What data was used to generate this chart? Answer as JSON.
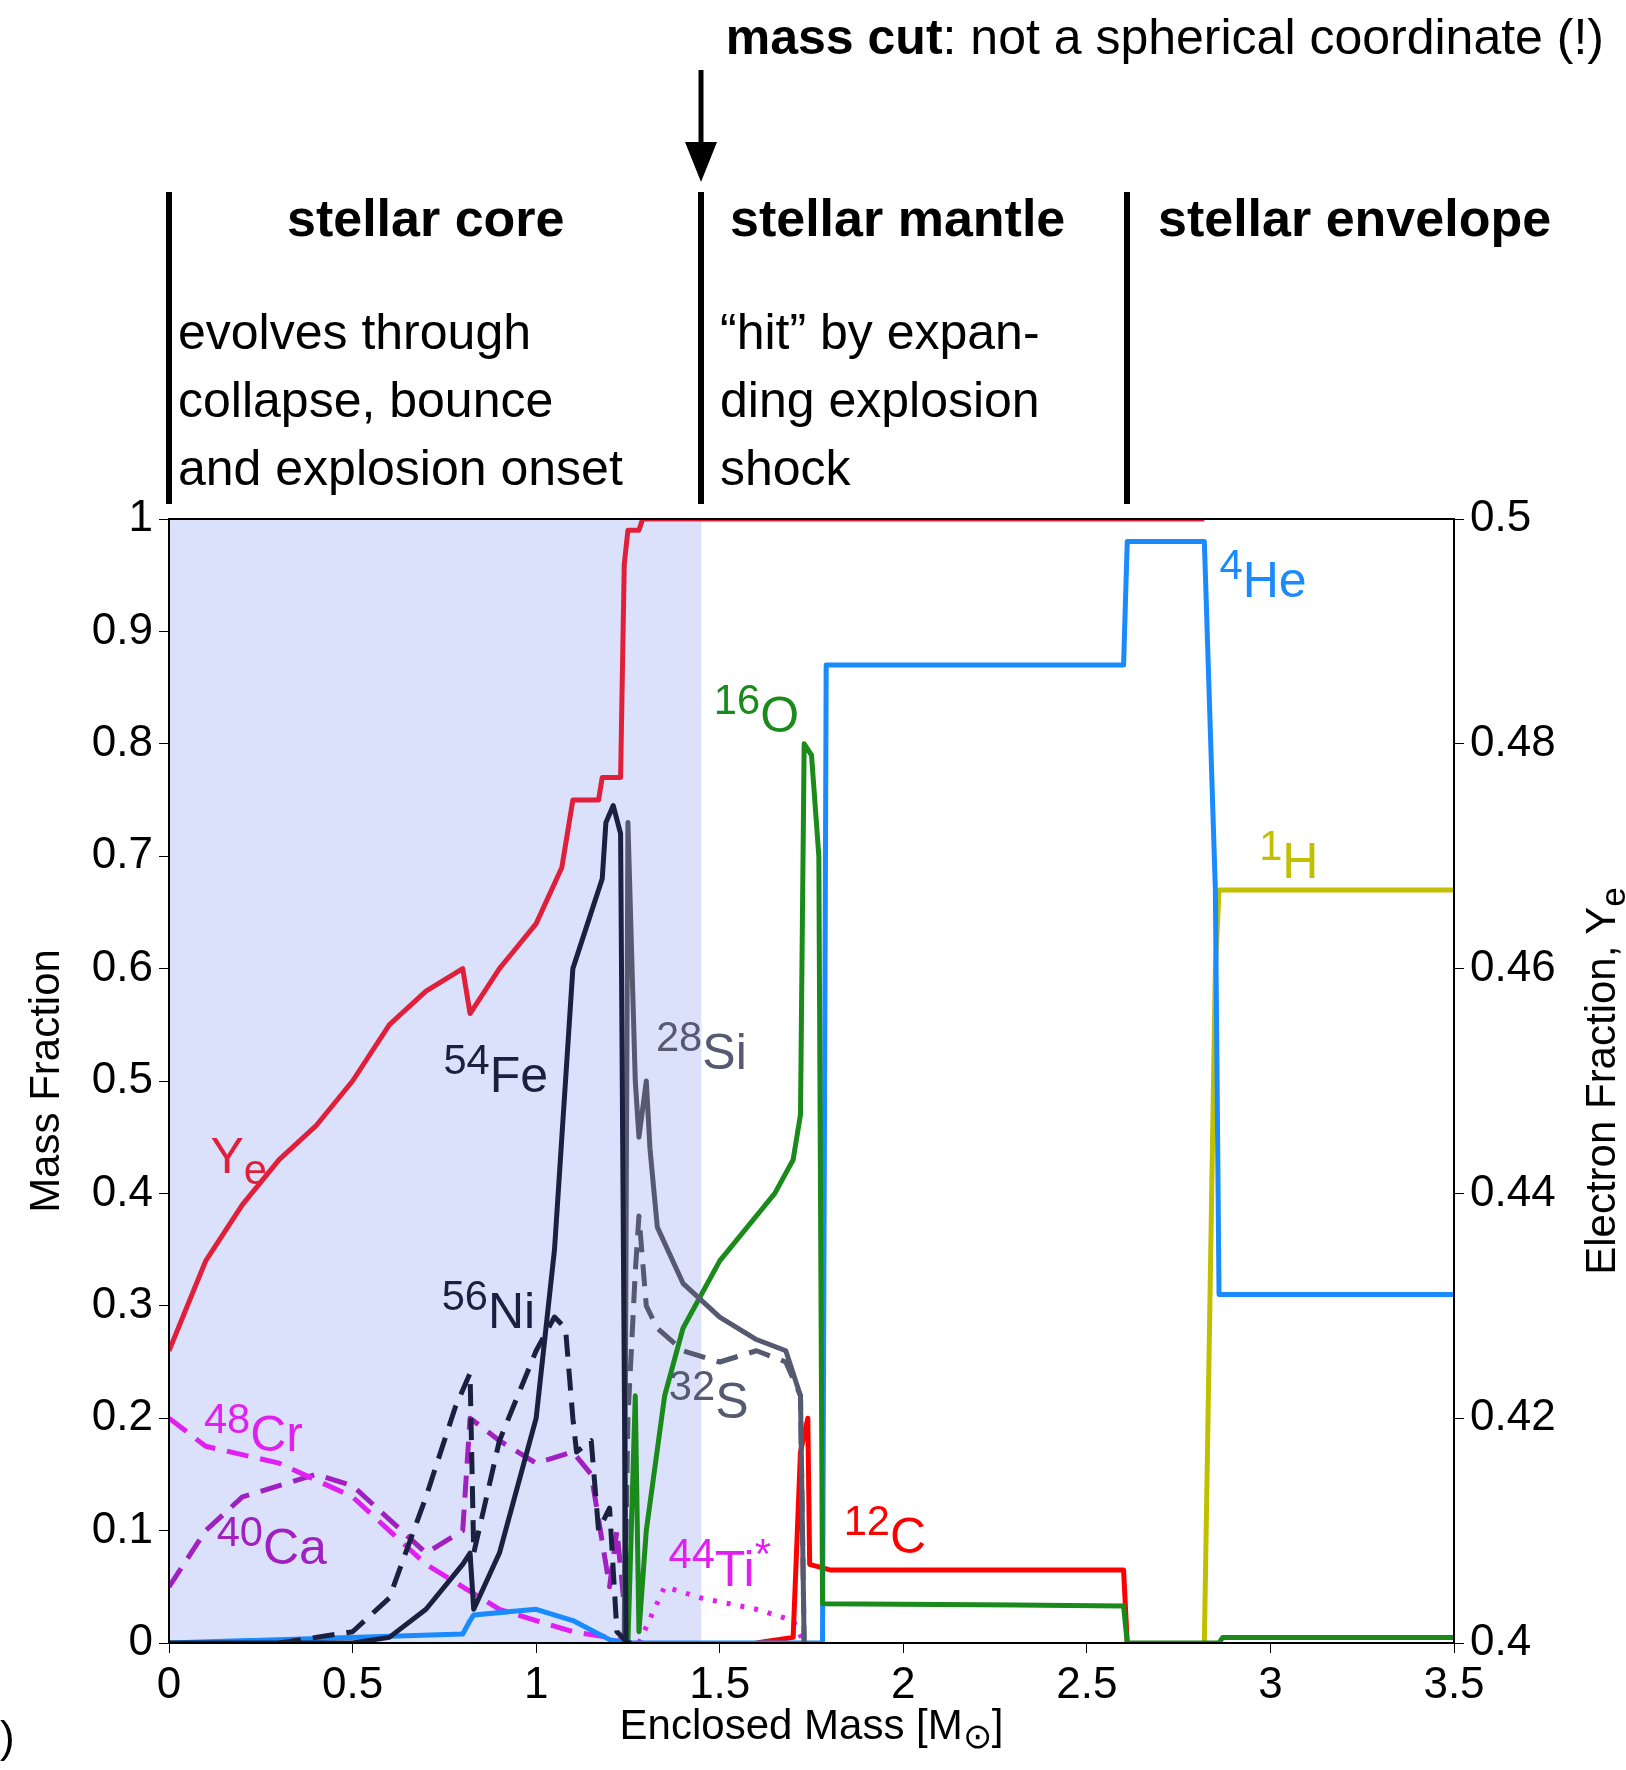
{
  "chart_data": {
    "type": "line",
    "xlabel": "Enclosed Mass [M$_{⊙}$]",
    "ylabel": "Mass Fraction",
    "y2label": "Electron Fraction, Y$_{e}$",
    "xlim": [
      0,
      3.5
    ],
    "xticks": [
      0,
      0.5,
      1,
      1.5,
      2,
      2.5,
      3,
      3.5
    ],
    "ylim": [
      0,
      1
    ],
    "yticks": [
      0,
      0.1,
      0.2,
      0.3,
      0.4,
      0.5,
      0.6,
      0.7,
      0.8,
      0.9,
      1
    ],
    "y2lim": [
      0.4,
      0.5
    ],
    "y2ticks": [
      0.4,
      0.42,
      0.44,
      0.46,
      0.48,
      0.5
    ],
    "grid": false,
    "legend": false,
    "marker": "none",
    "bands": [
      {
        "axis": "x",
        "from": 0,
        "to": 1.45,
        "color": "#dce1fb"
      }
    ],
    "annotations": [
      "mass cut: not a spherical coordinate (!)",
      "stellar core",
      "stellar mantle",
      "stellar envelope",
      "evolves through\ncollapse, bounce\nand explosion onset",
      "“hit” by expan-\nding explosion\nshock",
      ")"
    ],
    "series": [
      {
        "name": "Y$_{e}$",
        "axis": "y2",
        "color": "#e0203a",
        "line_style": "solid",
        "x": [
          0,
          0.1,
          0.2,
          0.3,
          0.4,
          0.5,
          0.6,
          0.7,
          0.8,
          0.82,
          0.9,
          1.0,
          1.07,
          1.1,
          1.17,
          1.18,
          1.23,
          1.24,
          1.25,
          1.28,
          1.29,
          1.45,
          2.82
        ],
        "values": [
          0.426,
          0.434,
          0.439,
          0.443,
          0.446,
          0.45,
          0.455,
          0.458,
          0.46,
          0.456,
          0.46,
          0.464,
          0.469,
          0.475,
          0.475,
          0.477,
          0.477,
          0.496,
          0.499,
          0.499,
          0.5,
          0.5,
          0.5
        ]
      },
      {
        "name": "$^{54}$Fe",
        "color": "#1a2040",
        "line_style": "solid",
        "x": [
          0,
          0.5,
          0.6,
          0.7,
          0.8,
          0.82,
          0.83,
          0.9,
          1.0,
          1.05,
          1.1,
          1.15,
          1.18,
          1.19,
          1.21,
          1.23,
          1.245,
          1.26
        ],
        "values": [
          0,
          0,
          0.005,
          0.03,
          0.07,
          0.08,
          0.03,
          0.08,
          0.2,
          0.35,
          0.6,
          0.65,
          0.68,
          0.73,
          0.745,
          0.72,
          0,
          0
        ]
      },
      {
        "name": "$^{56}$Ni",
        "color": "#1a2040",
        "line_style": "dashed",
        "x": [
          0.3,
          0.5,
          0.6,
          0.7,
          0.78,
          0.82,
          0.83,
          0.9,
          1.0,
          1.05,
          1.08,
          1.1,
          1.11,
          1.15,
          1.17,
          1.2,
          1.22,
          1.25
        ],
        "values": [
          0,
          0.01,
          0.04,
          0.13,
          0.21,
          0.24,
          0.08,
          0.18,
          0.26,
          0.29,
          0.28,
          0.2,
          0.17,
          0.18,
          0.1,
          0.12,
          0.01,
          0
        ]
      },
      {
        "name": "$^{28}$Si",
        "color": "#555a70",
        "line_style": "solid",
        "x": [
          1.24,
          1.25,
          1.27,
          1.28,
          1.3,
          1.31,
          1.33,
          1.4,
          1.5,
          1.6,
          1.68,
          1.72,
          1.73
        ],
        "values": [
          0,
          0.73,
          0.5,
          0.45,
          0.5,
          0.44,
          0.37,
          0.32,
          0.29,
          0.27,
          0.26,
          0.22,
          0
        ]
      },
      {
        "name": "$^{32}$S",
        "color": "#555a70",
        "line_style": "dashed",
        "x": [
          1.24,
          1.25,
          1.27,
          1.28,
          1.3,
          1.33,
          1.4,
          1.5,
          1.6,
          1.68,
          1.72,
          1.73
        ],
        "values": [
          0,
          0.2,
          0.33,
          0.38,
          0.3,
          0.28,
          0.26,
          0.25,
          0.26,
          0.25,
          0.22,
          0
        ]
      },
      {
        "name": "$^{16}$O",
        "color": "#1a8a1a",
        "line_style": "solid",
        "x": [
          1.25,
          1.27,
          1.28,
          1.3,
          1.35,
          1.4,
          1.5,
          1.6,
          1.65,
          1.7,
          1.72,
          1.73,
          1.75,
          1.77,
          1.78,
          2.6,
          2.61,
          2.86,
          2.87,
          3.5
        ],
        "values": [
          0,
          0.22,
          0.01,
          0.1,
          0.22,
          0.28,
          0.34,
          0.38,
          0.4,
          0.43,
          0.47,
          0.8,
          0.79,
          0.7,
          0.035,
          0.033,
          0,
          0,
          0.005,
          0.005
        ]
      },
      {
        "name": "$^{4}$He",
        "color": "#1a8aff",
        "line_style": "solid",
        "x": [
          0,
          0.8,
          0.82,
          0.83,
          1.0,
          1.1,
          1.2,
          1.25,
          1.78,
          1.79,
          2.6,
          2.61,
          2.82,
          2.85,
          2.86,
          3.5
        ],
        "values": [
          0,
          0.008,
          0.02,
          0.025,
          0.03,
          0.02,
          0.003,
          0,
          0,
          0.87,
          0.87,
          0.98,
          0.98,
          0.67,
          0.31,
          0.31
        ]
      },
      {
        "name": "$^{1}$H",
        "color": "#c0c000",
        "line_style": "solid",
        "x": [
          2.82,
          2.85,
          2.86,
          3.5
        ],
        "values": [
          0,
          0.6,
          0.67,
          0.67
        ]
      },
      {
        "name": "$^{12}$C",
        "color": "#ff0000",
        "line_style": "solid",
        "x": [
          1.6,
          1.7,
          1.72,
          1.74,
          1.745,
          1.8,
          2.6,
          2.61
        ],
        "values": [
          0,
          0.005,
          0.17,
          0.2,
          0.07,
          0.065,
          0.065,
          0
        ]
      },
      {
        "name": "$^{48}$Cr",
        "color": "#e020f0",
        "line_style": "dashed",
        "x": [
          0,
          0.1,
          0.3,
          0.5,
          0.6,
          0.7,
          0.8,
          0.9,
          1.0,
          1.1,
          1.2,
          1.25
        ],
        "values": [
          0.2,
          0.175,
          0.16,
          0.13,
          0.1,
          0.07,
          0.05,
          0.03,
          0.02,
          0.01,
          0.005,
          0
        ]
      },
      {
        "name": "$^{40}$Ca",
        "color": "#a020c0",
        "line_style": "dashed",
        "x": [
          0,
          0.1,
          0.2,
          0.4,
          0.5,
          0.6,
          0.7,
          0.8,
          0.82,
          0.9,
          1.0,
          1.1,
          1.15,
          1.2,
          1.22,
          1.25
        ],
        "values": [
          0.05,
          0.1,
          0.13,
          0.15,
          0.14,
          0.11,
          0.08,
          0.1,
          0.2,
          0.18,
          0.16,
          0.17,
          0.15,
          0.05,
          0.1,
          0
        ]
      },
      {
        "name": "$^{44}$Ti$^{*}$",
        "color": "#e020f0",
        "line_style": "dotted",
        "x": [
          1.28,
          1.35,
          1.45,
          1.6,
          1.7,
          1.73
        ],
        "values": [
          0,
          0.05,
          0.04,
          0.03,
          0.02,
          0
        ]
      }
    ]
  }
}
